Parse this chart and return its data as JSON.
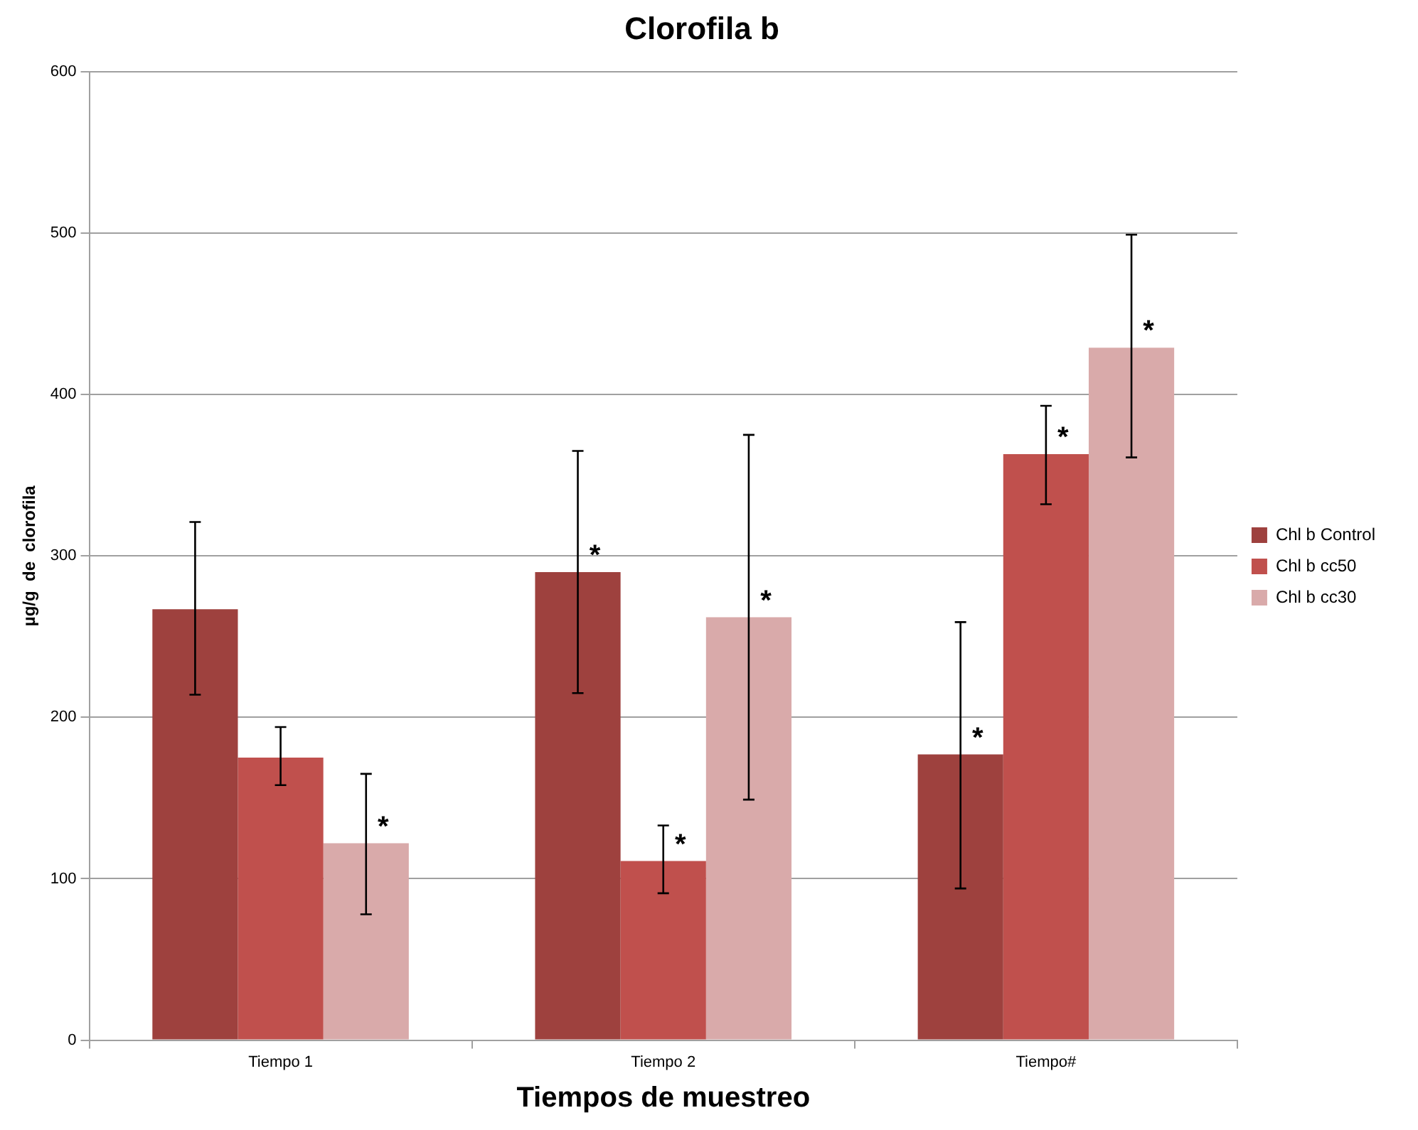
{
  "chart_data": {
    "type": "bar",
    "title": "Clorofila b",
    "xlabel": "Tiempos de muestreo",
    "ylabel": "µg/g  de  clorofila",
    "categories": [
      "Tiempo 1",
      "Tiempo 2",
      "Tiempo#"
    ],
    "series": [
      {
        "name": "Chl b Control",
        "color": "#9e413e",
        "values": [
          267,
          290,
          177
        ],
        "errors": [
          [
            214,
            321
          ],
          [
            215,
            365
          ],
          [
            94,
            259
          ]
        ],
        "value_labels": [
          null,
          "*",
          "*"
        ]
      },
      {
        "name": "Chl b cc50",
        "color": "#c0504d",
        "values": [
          175,
          111,
          363
        ],
        "errors": [
          [
            158,
            194
          ],
          [
            91,
            133
          ],
          [
            332,
            393
          ]
        ],
        "value_labels": [
          null,
          "*",
          "*"
        ]
      },
      {
        "name": "Chl b cc30",
        "color": "#d9aaaa",
        "values": [
          122,
          262,
          429
        ],
        "errors": [
          [
            78,
            165
          ],
          [
            149,
            375
          ],
          [
            361,
            499
          ]
        ],
        "value_labels": [
          "*",
          "*",
          "*"
        ]
      }
    ],
    "ylim": [
      0,
      600
    ],
    "yticks": [
      0,
      100,
      200,
      300,
      400,
      500,
      600
    ],
    "grid": "y",
    "legend": "right"
  }
}
